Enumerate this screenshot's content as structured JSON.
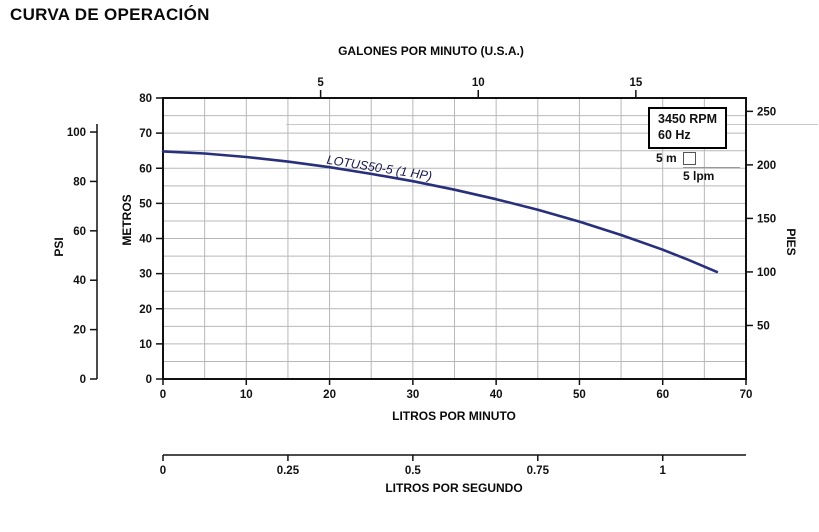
{
  "title": "CURVA DE OPERACIÓN",
  "legend": {
    "rpm": "3450 RPM",
    "frequency": "60 Hz",
    "grid_scale_m": "5 m",
    "grid_scale_lpm": "5 lpm"
  },
  "chart_data": {
    "type": "line",
    "title": "CURVA DE OPERACIÓN",
    "series": [
      {
        "name": "LOTUS50-5 (1 HP)",
        "color": "#28307c",
        "x_lpm": [
          0,
          5,
          10,
          15,
          20,
          25,
          30,
          35,
          40,
          45,
          50,
          55,
          60,
          63,
          66.5
        ],
        "y_m": [
          64.8,
          64.2,
          63.2,
          61.9,
          60.3,
          58.4,
          56.3,
          53.9,
          51.2,
          48.2,
          44.8,
          41,
          36.8,
          34,
          30.5
        ]
      }
    ],
    "axes": {
      "top": {
        "label": "GALONES POR MINUTO (U.S.A.)",
        "ticks": [
          5,
          10,
          15
        ],
        "lpm_per_unit": 3.785
      },
      "bottom_primary": {
        "label": "LITROS POR MINUTO",
        "min": 0,
        "max": 70,
        "ticks": [
          0,
          10,
          20,
          30,
          40,
          50,
          60,
          70
        ]
      },
      "bottom_secondary": {
        "label": "LITROS POR SEGUNDO",
        "ticks": [
          0,
          0.25,
          0.5,
          0.75,
          1
        ],
        "tick_labels": [
          "0",
          "0.25",
          "0.5",
          "0.75",
          "1"
        ],
        "lpm_per_unit": 60
      },
      "left_primary": {
        "label": "METROS",
        "min": 0,
        "max": 80,
        "ticks": [
          0,
          10,
          20,
          30,
          40,
          50,
          60,
          70,
          80
        ]
      },
      "left_secondary": {
        "label": "PSI",
        "ticks": [
          0,
          20,
          40,
          60,
          80,
          100
        ],
        "m_per_unit": 0.7031
      },
      "right": {
        "label": "PIES",
        "ticks": [
          50,
          100,
          150,
          200,
          250
        ],
        "m_per_unit": 0.3048
      }
    },
    "grid_step_lpm": 5,
    "grid_step_m": 5,
    "annotations": {
      "rpm": "3450 RPM",
      "frequency": "60 Hz",
      "grid_square": "5 m × 5 lpm"
    }
  }
}
